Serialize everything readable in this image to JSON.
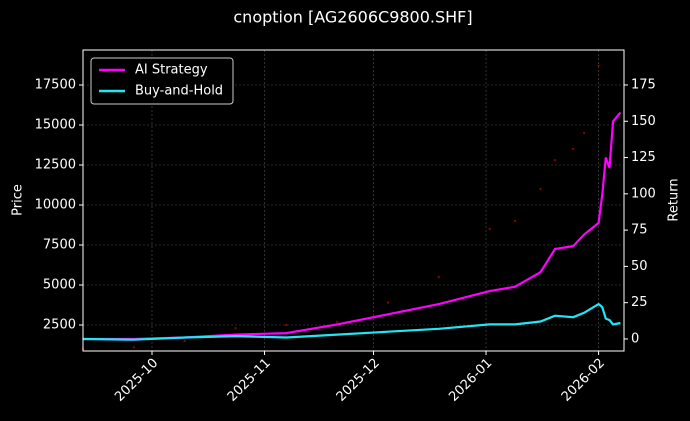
{
  "chart_data": {
    "type": "line",
    "title": "cnoption [AG2606C9800.SHF]",
    "ylabel": "Price",
    "y2label": "Return",
    "x": [
      "2025-09-12",
      "2025-09-26",
      "2025-10-10",
      "2025-10-24",
      "2025-11-07",
      "2025-11-21",
      "2025-12-05",
      "2025-12-19",
      "2026-01-02",
      "2026-01-09",
      "2026-01-16",
      "2026-01-20",
      "2026-01-25",
      "2026-01-28",
      "2026-02-01",
      "2026-02-02",
      "2026-02-03",
      "2026-02-04",
      "2026-02-05",
      "2026-02-07"
    ],
    "xlim": [
      "2025-09-12",
      "2026-02-08"
    ],
    "xticks": [
      {
        "value": "2025-10-01",
        "label": "2025-10"
      },
      {
        "value": "2025-11-01",
        "label": "2025-11"
      },
      {
        "value": "2025-12-01",
        "label": "2025-12"
      },
      {
        "value": "2026-01-01",
        "label": "2026-01"
      },
      {
        "value": "2026-02-01",
        "label": "2026-02"
      }
    ],
    "ylim": [
      875,
      19687
    ],
    "yticks": [
      2500,
      5000,
      7500,
      10000,
      12500,
      15000,
      17500
    ],
    "y2lim": [
      -8.3,
      199.1
    ],
    "y2ticks": [
      0,
      25,
      50,
      75,
      100,
      125,
      150,
      175
    ],
    "grid": true,
    "legend": "upper left",
    "series": [
      {
        "color": "#8b0000",
        "marker": "dot",
        "values": [
          1000,
          1100,
          1500,
          2300,
          2500,
          2700,
          3900,
          5500,
          8500,
          9000,
          11000,
          12800,
          13500,
          14500,
          18700,
          null,
          null,
          null,
          null,
          null
        ]
      },
      {
        "name": "AI Strategy",
        "color": "#ff00ff",
        "axis": "y2",
        "values": [
          0,
          0,
          1,
          3,
          4,
          10,
          17,
          24,
          33,
          36,
          46,
          62,
          64,
          72,
          80,
          99,
          125,
          118,
          150,
          156
        ]
      },
      {
        "name": "Buy-and-Hold",
        "color": "#22e5f5",
        "axis": "y2",
        "values": [
          0,
          -0.5,
          1,
          2,
          1,
          3,
          5,
          7,
          10,
          10,
          12,
          16,
          15,
          18,
          24,
          22,
          14,
          13,
          10,
          11
        ]
      }
    ]
  }
}
